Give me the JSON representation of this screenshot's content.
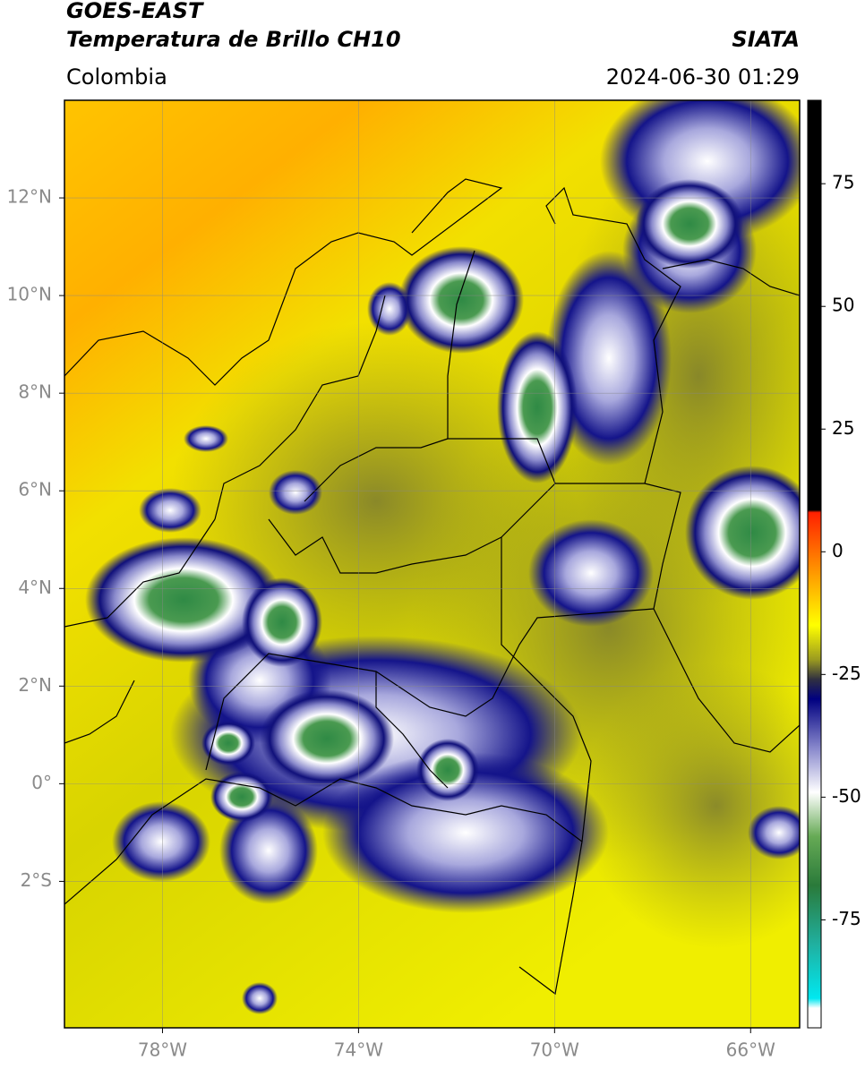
{
  "header": {
    "satellite": "GOES-EAST",
    "product": "Temperatura de Brillo CH10",
    "region": "Colombia",
    "source": "SIATA",
    "datetime": "2024-06-30 01:29"
  },
  "map": {
    "xlim": [
      -80,
      -65
    ],
    "ylim": [
      -5,
      14
    ],
    "xticks": [
      {
        "value": -78,
        "label": "78°W"
      },
      {
        "value": -74,
        "label": "74°W"
      },
      {
        "value": -70,
        "label": "70°W"
      },
      {
        "value": -66,
        "label": "66°W"
      }
    ],
    "yticks": [
      {
        "value": 12,
        "label": "12°N"
      },
      {
        "value": 10,
        "label": "10°N"
      },
      {
        "value": 8,
        "label": "8°N"
      },
      {
        "value": 6,
        "label": "6°N"
      },
      {
        "value": 4,
        "label": "4°N"
      },
      {
        "value": 2,
        "label": "2°N"
      },
      {
        "value": 0,
        "label": "0°"
      },
      {
        "value": -2,
        "label": "2°S"
      }
    ],
    "grid": true
  },
  "colorbar": {
    "lim": [
      -97,
      92
    ],
    "ticks": [
      75,
      50,
      25,
      0,
      -25,
      -50,
      -75
    ],
    "colormap": [
      {
        "value": 92,
        "color": "#000000"
      },
      {
        "value": 8.5,
        "color": "#000000"
      },
      {
        "value": 8,
        "color": "#ff2000"
      },
      {
        "value": -5,
        "color": "#ffa000"
      },
      {
        "value": -15,
        "color": "#ffff00"
      },
      {
        "value": -22,
        "color": "#9a9a20"
      },
      {
        "value": -26,
        "color": "#303040"
      },
      {
        "value": -30,
        "color": "#000080"
      },
      {
        "value": -40,
        "color": "#8888cc"
      },
      {
        "value": -49,
        "color": "#ffffff"
      },
      {
        "value": -58,
        "color": "#66aa55"
      },
      {
        "value": -68,
        "color": "#2a7a3a"
      },
      {
        "value": -80,
        "color": "#20b0a0"
      },
      {
        "value": -91,
        "color": "#00e8f0"
      },
      {
        "value": -93,
        "color": "#ffffff"
      },
      {
        "value": -97,
        "color": "#ffffff"
      }
    ]
  }
}
